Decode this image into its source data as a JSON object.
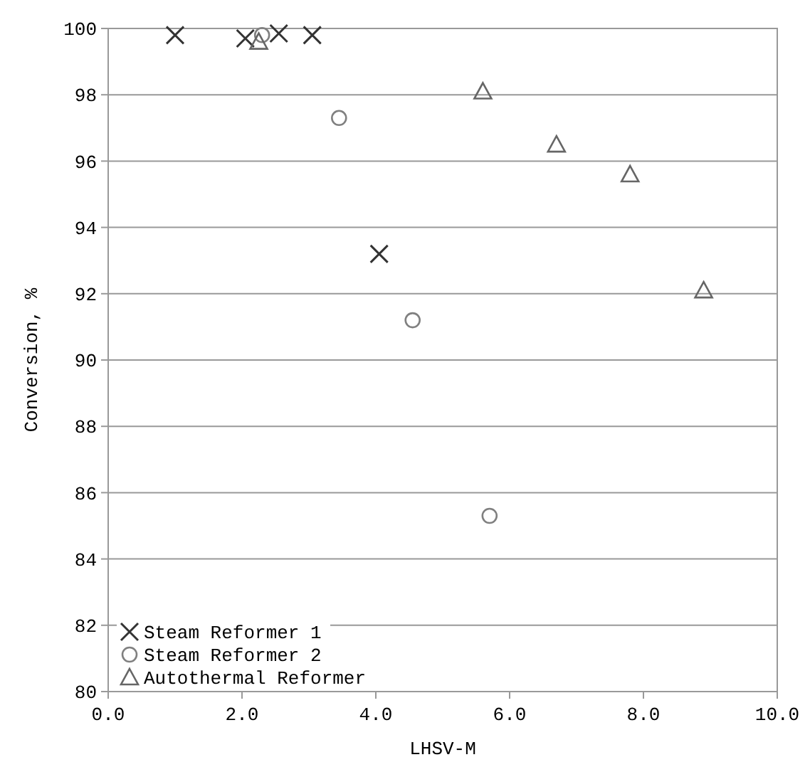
{
  "chart_data": {
    "type": "scatter",
    "xlabel": "LHSV-M",
    "ylabel": "Conversion, %",
    "xlim": [
      0,
      10
    ],
    "ylim": [
      80,
      100
    ],
    "xticks": [
      {
        "value": 0,
        "label": "0.0"
      },
      {
        "value": 2,
        "label": "2.0"
      },
      {
        "value": 4,
        "label": "4.0"
      },
      {
        "value": 6,
        "label": "6.0"
      },
      {
        "value": 8,
        "label": "8.0"
      },
      {
        "value": 10,
        "label": "10.0"
      }
    ],
    "yticks": [
      80,
      82,
      84,
      86,
      88,
      90,
      92,
      94,
      96,
      98,
      100
    ],
    "grid": "y",
    "legend": "bottom left",
    "series": [
      {
        "name": "Steam Reformer 1",
        "color": "#333333",
        "marker": "cross",
        "x": [
          1.0,
          2.05,
          2.55,
          3.05,
          4.05
        ],
        "values": [
          99.8,
          99.7,
          99.85,
          99.8,
          93.2
        ]
      },
      {
        "name": "Steam Reformer 2",
        "color": "#808080",
        "marker": "circle",
        "x": [
          2.3,
          3.45,
          4.55,
          5.7
        ],
        "values": [
          99.8,
          97.3,
          91.2,
          85.3
        ]
      },
      {
        "name": "Autothermal Reformer",
        "color": "#666666",
        "marker": "triangle",
        "x": [
          2.25,
          5.6,
          6.7,
          7.8,
          8.9
        ],
        "values": [
          99.6,
          98.1,
          96.5,
          95.6,
          92.1
        ]
      }
    ]
  }
}
